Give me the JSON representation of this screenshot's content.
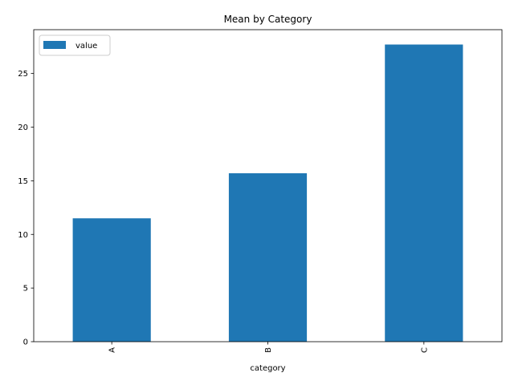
{
  "chart_data": {
    "type": "bar",
    "title": "Mean by Category",
    "xlabel": "category",
    "ylabel": "",
    "categories": [
      "A",
      "B",
      "C"
    ],
    "series": [
      {
        "name": "value",
        "values": [
          11.5,
          15.7,
          27.7
        ],
        "color": "#1f77b4"
      }
    ],
    "ylim": [
      0,
      29.085
    ],
    "yticks": [
      0,
      5,
      10,
      15,
      20,
      25
    ],
    "grid": false,
    "legend_position": "upper-left",
    "x_tick_rotation": "vertical"
  }
}
